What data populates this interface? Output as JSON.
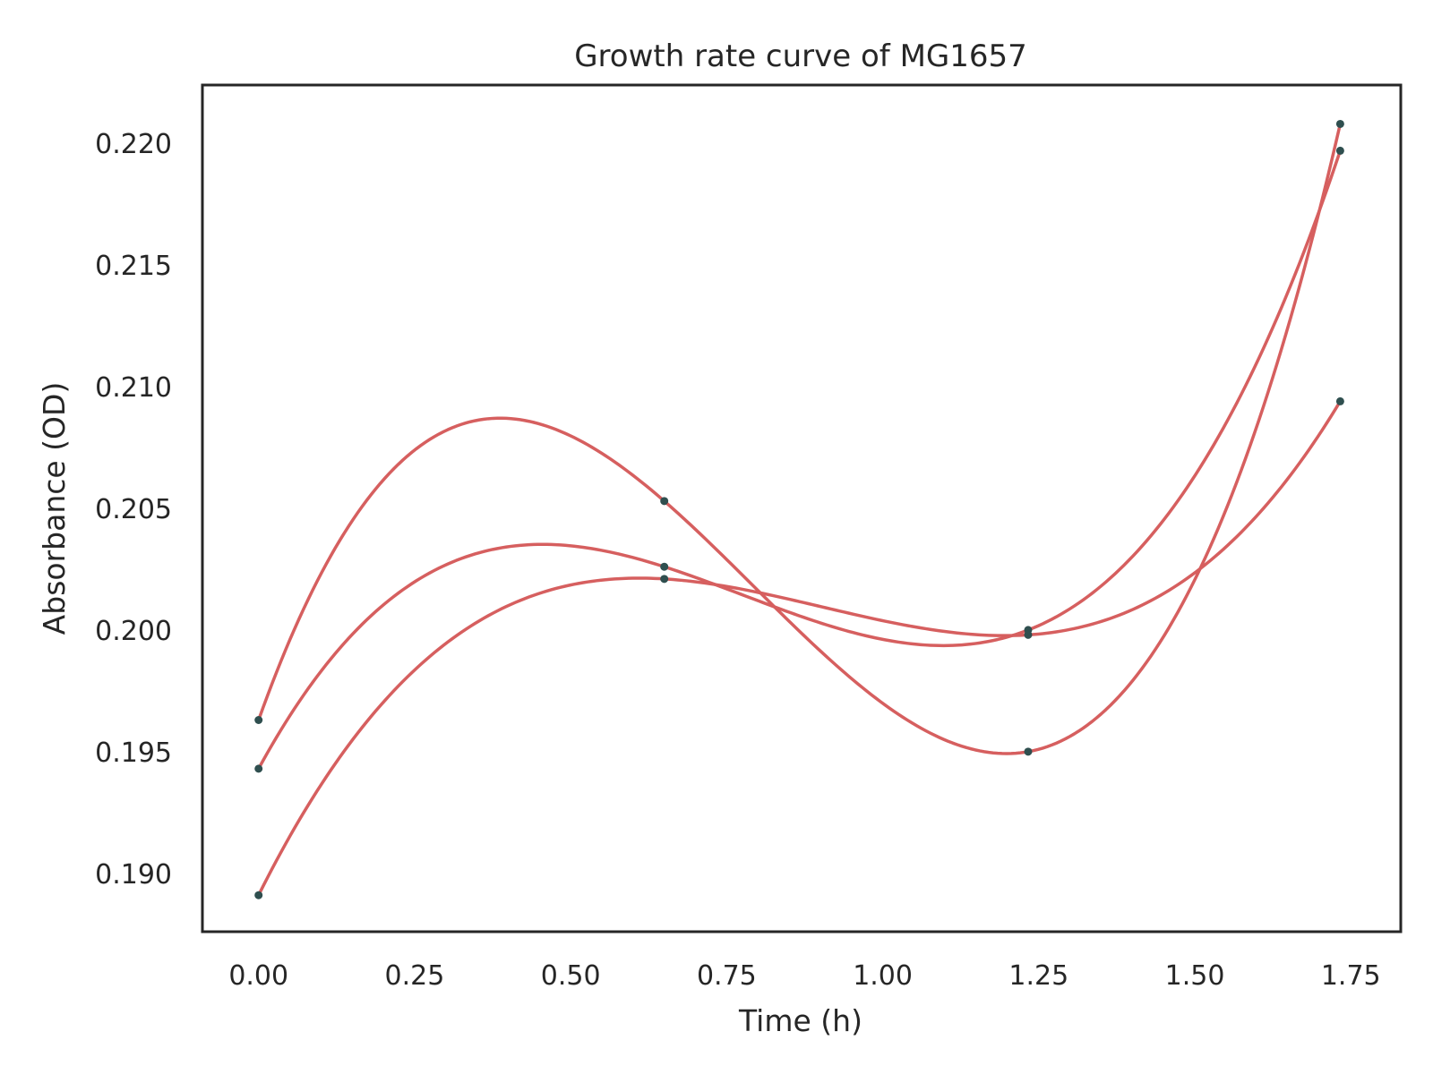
{
  "colors": {
    "curve": "#d65f5f",
    "point": "#2f4f4f",
    "frame": "#262626",
    "text": "#262626",
    "background": "#ffffff"
  },
  "chart_data": {
    "type": "line",
    "title": "Growth rate curve of MG1657",
    "xlabel": "Time (h)",
    "ylabel": "Absorbance (OD)",
    "xlim": [
      -0.09,
      1.83
    ],
    "ylim": [
      0.1876,
      0.2224
    ],
    "grid": false,
    "legend": false,
    "xticks": [
      0.0,
      0.25,
      0.5,
      0.75,
      1.0,
      1.25,
      1.5,
      1.75
    ],
    "xtick_labels": [
      "0.00",
      "0.25",
      "0.50",
      "0.75",
      "1.00",
      "1.25",
      "1.50",
      "1.75"
    ],
    "yticks": [
      0.19,
      0.195,
      0.2,
      0.205,
      0.21,
      0.215,
      0.22
    ],
    "ytick_labels": [
      "0.190",
      "0.195",
      "0.200",
      "0.205",
      "0.210",
      "0.215",
      "0.220"
    ],
    "x": [
      0.0,
      0.65,
      1.233,
      1.733
    ],
    "series": [
      {
        "values": [
          0.1963,
          0.2053,
          0.195,
          0.2208
        ]
      },
      {
        "values": [
          0.1943,
          0.2026,
          0.2,
          0.2197
        ]
      },
      {
        "values": [
          0.1891,
          0.2021,
          0.1998,
          0.2094
        ]
      }
    ]
  }
}
